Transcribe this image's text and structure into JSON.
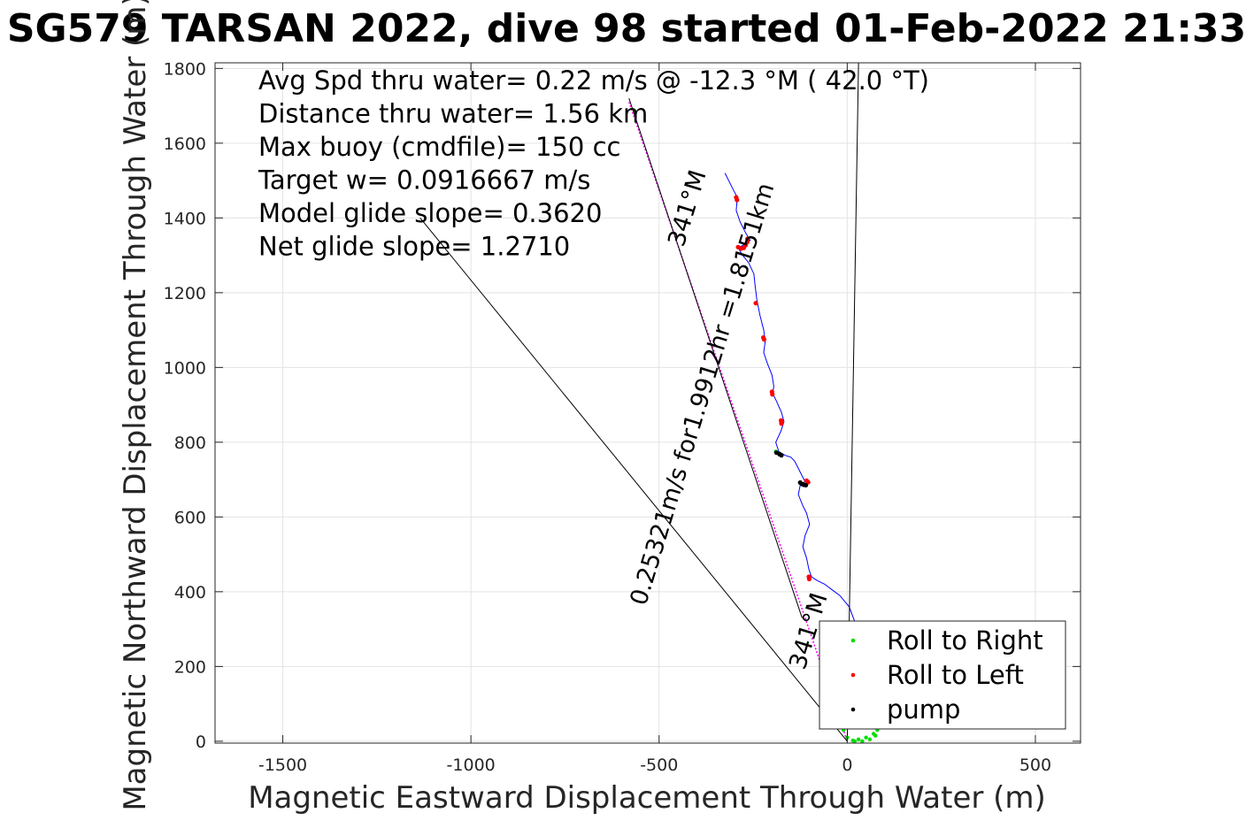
{
  "chart_data": {
    "type": "line",
    "title": "SG579 TARSAN 2022, dive 98 started 01-Feb-2022 21:33",
    "xlabel": "Magnetic Eastward Displacement Through Water (m)",
    "ylabel": "Magnetic Northward Displacement Through Water (m)",
    "xlim": [
      -1680,
      620
    ],
    "ylim": [
      -5,
      1815
    ],
    "xticks": [
      -1500,
      -1000,
      -500,
      0,
      500
    ],
    "yticks": [
      0,
      200,
      400,
      600,
      800,
      1000,
      1200,
      1400,
      1600,
      1800
    ],
    "grid": true,
    "legend_position": "bottom-right",
    "annotations": [
      "Avg Spd thru water=  0.22 m/s @ -12.3 °M ( 42.0 °T)",
      "Distance thru water=  1.56 km",
      "Max buoy (cmdfile)= 150 cc",
      "Target w= 0.0916667 m/s",
      "Model glide slope= 0.3620",
      "Net glide slope= 1.2710"
    ],
    "current_label": "0.25321m/s for1.9912hr =1.8151km",
    "heading_label_top": "341°M",
    "heading_label_bottom": "341°M",
    "legend": [
      {
        "label": "Roll to Right",
        "color": "#00dd00"
      },
      {
        "label": "Roll to Left",
        "color": "#ff0000"
      },
      {
        "label": "pump",
        "color": "#000000"
      }
    ],
    "series": [
      {
        "kind": "track",
        "color": "#0000ff",
        "x": [
          -325,
          -310,
          -300,
          -292,
          -295,
          -285,
          -270,
          -258,
          -272,
          -290,
          -278,
          -262,
          -248,
          -245,
          -240,
          -232,
          -222,
          -218,
          -222,
          -212,
          -200,
          -195,
          -198,
          -188,
          -175,
          -168,
          -176,
          -190,
          -182,
          -165,
          -150,
          -140,
          -130,
          -120,
          -112,
          -125,
          -130,
          -118,
          -108,
          -100,
          -112,
          -118,
          -108,
          -102,
          -95,
          -80,
          -60,
          -40,
          -20,
          5,
          20
        ],
        "y": [
          1520,
          1490,
          1470,
          1455,
          1420,
          1390,
          1360,
          1340,
          1330,
          1320,
          1300,
          1280,
          1250,
          1220,
          1180,
          1140,
          1100,
          1070,
          1040,
          1010,
          980,
          950,
          930,
          910,
          880,
          855,
          830,
          800,
          775,
          765,
          760,
          750,
          730,
          710,
          695,
          685,
          660,
          630,
          610,
          580,
          550,
          520,
          490,
          460,
          440,
          430,
          420,
          405,
          390,
          360,
          320
        ]
      },
      {
        "kind": "roll-right",
        "color": "#00dd00",
        "x": [
          -190,
          -180,
          -10,
          0,
          20,
          40,
          60,
          75,
          80,
          70,
          50,
          30,
          15
        ],
        "y": [
          775,
          770,
          30,
          10,
          0,
          0,
          5,
          15,
          30,
          20,
          10,
          5,
          2
        ]
      },
      {
        "kind": "roll-left",
        "color": "#ff0000",
        "x": [
          -295,
          -293,
          -290,
          -282,
          -275,
          -270,
          -266,
          -265,
          -243,
          -223,
          -221,
          -200,
          -199,
          -176,
          -175,
          -108,
          -104,
          -102,
          -101
        ],
        "y": [
          1455,
          1448,
          1322,
          1318,
          1320,
          1327,
          1335,
          1344,
          1172,
          1080,
          1075,
          935,
          928,
          858,
          850,
          697,
          693,
          440,
          434
        ]
      },
      {
        "kind": "pump",
        "color": "#000000",
        "x": [
          -188,
          -180,
          -175,
          -125,
          -120,
          -115,
          -110
        ],
        "y": [
          772,
          768,
          765,
          692,
          688,
          686,
          685
        ]
      },
      {
        "kind": "current-line",
        "color": "#ff00ff",
        "x": [
          -580,
          0
        ],
        "y": [
          1710,
          0
        ]
      },
      {
        "kind": "reference-lines",
        "color": "#000000",
        "segments": [
          {
            "x": [
              -1135,
              0
            ],
            "y": [
              1400,
              0
            ]
          },
          {
            "x": [
              0,
              30
            ],
            "y": [
              0,
              1815
            ]
          },
          {
            "x": [
              -580,
              -120
            ],
            "y": [
              1720,
              330
            ]
          }
        ]
      }
    ]
  }
}
